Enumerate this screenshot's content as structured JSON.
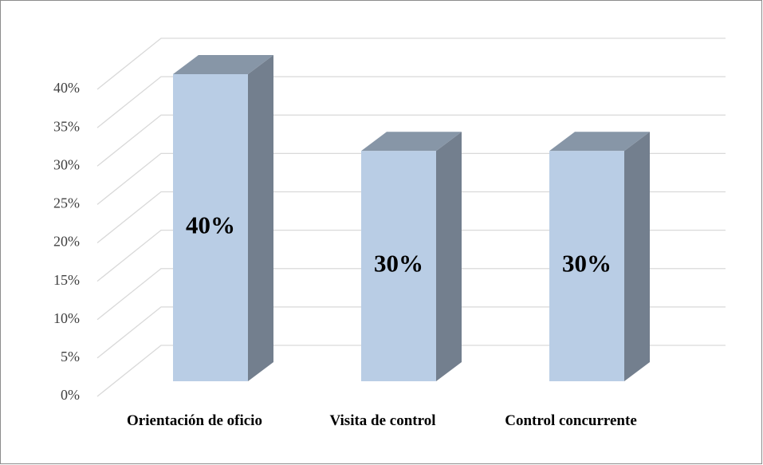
{
  "chart_data": {
    "type": "bar3d",
    "categories": [
      "Orientación de oficio",
      "Visita de control",
      "Control concurrente"
    ],
    "values": [
      40,
      30,
      30
    ],
    "value_labels": [
      "40%",
      "30%",
      "30%"
    ],
    "color": "#b9cde5",
    "ylim": [
      0,
      40
    ],
    "yticks": [
      {
        "value": 0,
        "label": "0%"
      },
      {
        "value": 5,
        "label": "5%"
      },
      {
        "value": 10,
        "label": "10%"
      },
      {
        "value": 15,
        "label": "15%"
      },
      {
        "value": 20,
        "label": "20%"
      },
      {
        "value": 25,
        "label": "25%"
      },
      {
        "value": 30,
        "label": "30%"
      },
      {
        "value": 35,
        "label": "35%"
      },
      {
        "value": 40,
        "label": "40%"
      }
    ],
    "grid": true
  }
}
